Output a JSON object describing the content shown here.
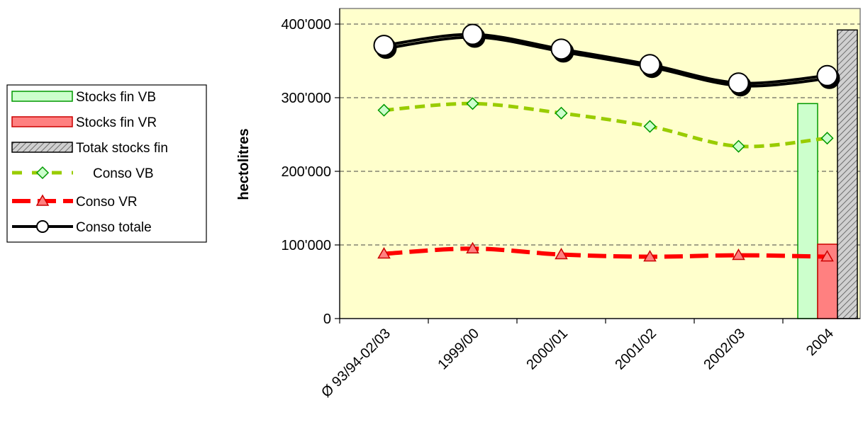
{
  "chart_data": {
    "type": "bar+line",
    "title": "",
    "xlabel": "",
    "ylabel": "hectolitres",
    "ylim": [
      0,
      400000
    ],
    "y_ticks": [
      0,
      100000,
      200000,
      300000,
      400000
    ],
    "y_tick_labels": [
      "0",
      "100'000",
      "200'000",
      "300'000",
      "400'000"
    ],
    "categories": [
      "Ø 93/94-02/03",
      "1999/00",
      "2000/01",
      "2001/02",
      "2002/03",
      "2004"
    ],
    "grid": "horizontal dashed",
    "legend_position": "left",
    "plot_background": "#FFFFCC",
    "bar_series": [
      {
        "name": "Stocks fin VB",
        "category": "2004",
        "value": 292000,
        "color": "#CCFFCC",
        "border": "#009900"
      },
      {
        "name": "Stocks fin VR",
        "category": "2004",
        "value": 101000,
        "color": "#FF8080",
        "border": "#CC0000"
      },
      {
        "name": "Totak stocks fin",
        "category": "2004",
        "value": 392000,
        "color": "#C0C0C0",
        "border": "#000000",
        "pattern": "hatch"
      }
    ],
    "line_series": [
      {
        "name": "Conso VB",
        "values": [
          283000,
          292000,
          279000,
          261000,
          234000,
          245000
        ],
        "color": "#99CC00",
        "dash": "dashed",
        "marker": "diamond",
        "marker_fill": "#CCFFCC",
        "marker_border": "#009900"
      },
      {
        "name": "Conso VR",
        "values": [
          88000,
          95000,
          87000,
          84000,
          86000,
          84000
        ],
        "color": "#FF0000",
        "dash": "long-dashed",
        "marker": "triangle",
        "marker_fill": "#FF8080",
        "marker_border": "#CC0000"
      },
      {
        "name": "Conso totale",
        "values": [
          371000,
          386000,
          366000,
          345000,
          320000,
          330000
        ],
        "color": "#000000",
        "dash": "solid",
        "marker": "circle",
        "marker_fill": "#FFFFFF",
        "marker_border": "#000000"
      }
    ]
  }
}
